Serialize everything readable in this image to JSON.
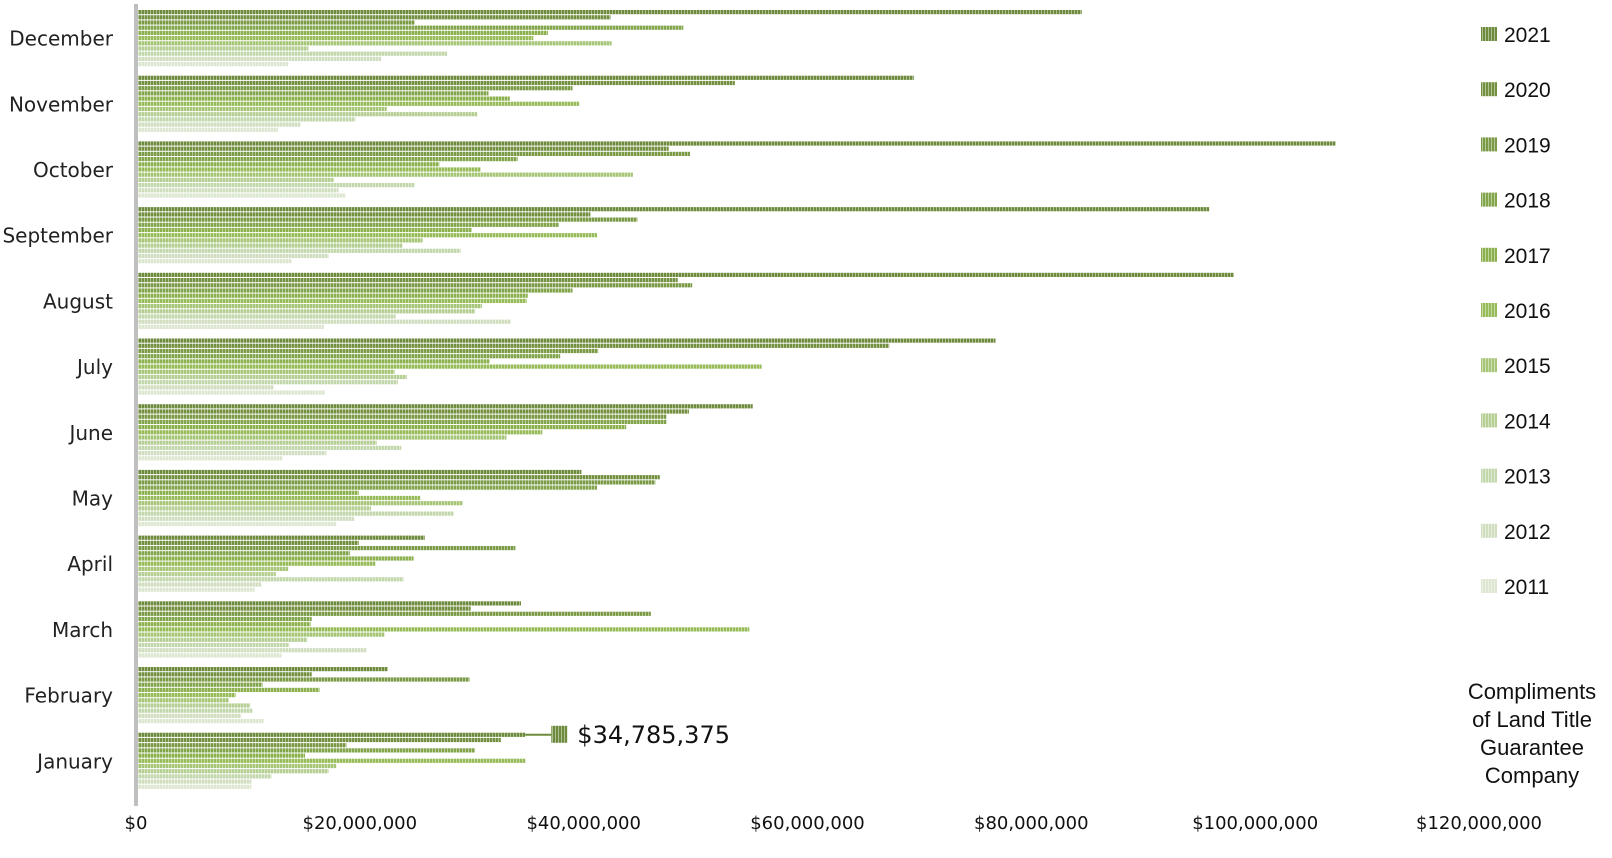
{
  "chart_data": {
    "type": "bar",
    "orientation": "horizontal",
    "categories": [
      "December",
      "November",
      "October",
      "September",
      "August",
      "July",
      "June",
      "May",
      "April",
      "March",
      "February",
      "January"
    ],
    "series": [
      {
        "name": "2021",
        "color": "#6E8B3D",
        "values": [
          84500000,
          69500000,
          107200000,
          95900000,
          98100000,
          76800000,
          55100000,
          39800000,
          25800000,
          34400000,
          22500000,
          34785375
        ]
      },
      {
        "name": "2020",
        "color": "#738F40",
        "values": [
          42400000,
          53500000,
          47600000,
          40600000,
          48400000,
          67300000,
          49400000,
          46800000,
          19900000,
          29900000,
          15700000,
          32600000
        ]
      },
      {
        "name": "2019",
        "color": "#7A9A45",
        "values": [
          24900000,
          39000000,
          49500000,
          44800000,
          49700000,
          41300000,
          47400000,
          46400000,
          33900000,
          46000000,
          29800000,
          18800000
        ]
      },
      {
        "name": "2018",
        "color": "#82A44B",
        "values": [
          48900000,
          31500000,
          34100000,
          37800000,
          39000000,
          37900000,
          47400000,
          41200000,
          19100000,
          15700000,
          11300000,
          30300000
        ]
      },
      {
        "name": "2017",
        "color": "#8DB04F",
        "values": [
          36800000,
          33400000,
          27100000,
          30000000,
          35000000,
          31600000,
          43800000,
          19900000,
          24800000,
          15600000,
          16400000,
          15100000
        ]
      },
      {
        "name": "2016",
        "color": "#97BB58",
        "values": [
          35500000,
          39600000,
          30800000,
          41200000,
          34900000,
          55900000,
          36300000,
          25400000,
          21400000,
          54800000,
          8900000,
          34800000
        ]
      },
      {
        "name": "2015",
        "color": "#A6C576",
        "values": [
          42500000,
          22400000,
          44400000,
          25600000,
          30900000,
          23100000,
          33100000,
          29200000,
          13600000,
          22200000,
          8300000,
          17900000
        ]
      },
      {
        "name": "2014",
        "color": "#B5CE93",
        "values": [
          15400000,
          30500000,
          17700000,
          23800000,
          30300000,
          24200000,
          21500000,
          21000000,
          12500000,
          15300000,
          10200000,
          17200000
        ]
      },
      {
        "name": "2013",
        "color": "#C3D7AC",
        "values": [
          27800000,
          19600000,
          24900000,
          29000000,
          23200000,
          23400000,
          23700000,
          28400000,
          23900000,
          13700000,
          10400000,
          12100000
        ]
      },
      {
        "name": "2012",
        "color": "#D0DEBF",
        "values": [
          21900000,
          14700000,
          18100000,
          17200000,
          33500000,
          12300000,
          17000000,
          19500000,
          11200000,
          20600000,
          9400000,
          10300000
        ]
      },
      {
        "name": "2011",
        "color": "#DCE6D0",
        "values": [
          13600000,
          12700000,
          18700000,
          13900000,
          16800000,
          16900000,
          13100000,
          17900000,
          10600000,
          13000000,
          11400000,
          10300000
        ]
      }
    ],
    "xlim": [
      0,
      120000000
    ],
    "xticks": [
      "$0",
      "$20,000,000",
      "$40,000,000",
      "$60,000,000",
      "$80,000,000",
      "$100,000,000",
      "$120,000,000"
    ],
    "highlight": {
      "category": "January",
      "series": "2021",
      "label": "$34,785,375"
    },
    "legend_position": "right",
    "grid": false
  },
  "footer_note": [
    "Compliments",
    "of Land Title",
    "Guarantee",
    "Company"
  ]
}
